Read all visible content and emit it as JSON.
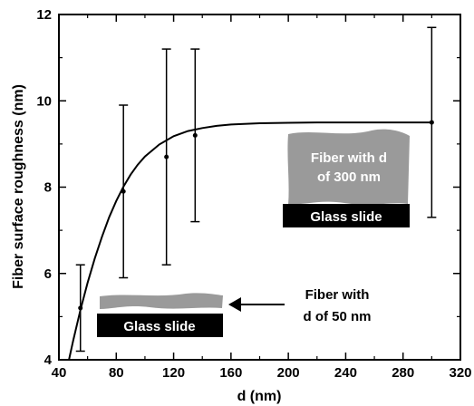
{
  "chart_data": {
    "type": "scatter",
    "title": "",
    "xlabel": "d (nm)",
    "ylabel": "Fiber surface roughness (nm)",
    "xlim": [
      40,
      320
    ],
    "ylim": [
      4,
      12
    ],
    "xticks": [
      40,
      80,
      120,
      160,
      200,
      240,
      280,
      320
    ],
    "yticks": [
      4,
      6,
      8,
      10,
      12
    ],
    "grid": false,
    "series": [
      {
        "x": [
          55,
          85,
          115,
          135,
          300
        ],
        "y": [
          5.2,
          7.9,
          8.7,
          9.2,
          9.5
        ],
        "err_low": [
          4.2,
          5.9,
          6.2,
          7.2,
          7.3
        ],
        "err_high": [
          6.2,
          9.9,
          11.2,
          11.2,
          11.7
        ]
      }
    ],
    "fit_curve": {
      "x": [
        47,
        50,
        55,
        60,
        65,
        70,
        75,
        80,
        85,
        90,
        95,
        100,
        110,
        120,
        130,
        140,
        150,
        160,
        180,
        200,
        220,
        240,
        260,
        280,
        300
      ],
      "y": [
        4.0,
        4.45,
        5.15,
        5.78,
        6.35,
        6.85,
        7.3,
        7.68,
        8.01,
        8.29,
        8.52,
        8.71,
        8.99,
        9.18,
        9.3,
        9.37,
        9.42,
        9.45,
        9.48,
        9.49,
        9.5,
        9.5,
        9.5,
        9.5,
        9.5
      ]
    },
    "annotations": {
      "fiber_thick": "Fiber with d of 300 nm",
      "fiber_thick_line1": "Fiber with d",
      "fiber_thick_line2": "of 300 nm",
      "glass_slide_right": "Glass slide",
      "glass_slide_left": "Glass slide",
      "fiber_thin_line1": "Fiber with",
      "fiber_thin_line2": "d of 50 nm"
    },
    "colors": {
      "fiber": "#9a9a9a",
      "slide": "#000000",
      "slide_text": "#ffffff",
      "fiber_text": "#ffffff"
    }
  }
}
